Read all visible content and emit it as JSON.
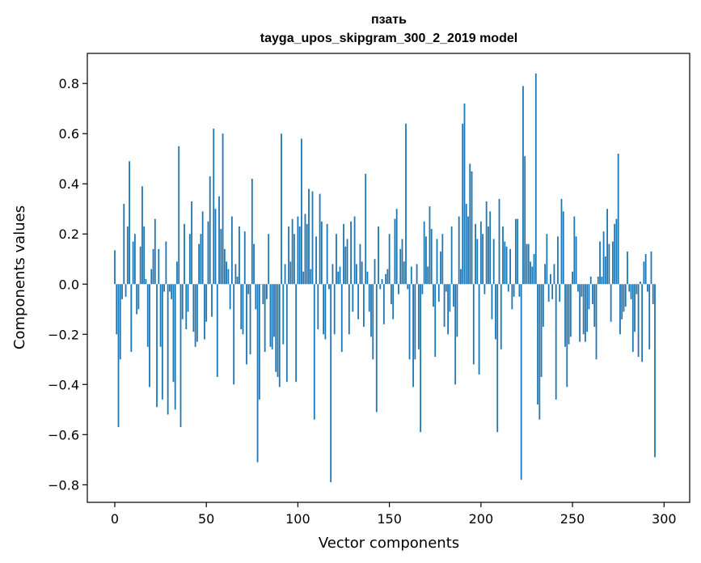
{
  "chart_data": {
    "type": "bar",
    "title": "пзать",
    "subtitle": "tayga_upos_skipgram_300_2_2019 model",
    "xlabel": "Vector components",
    "ylabel": "Components values",
    "xlim": [
      -15,
      314
    ],
    "ylim": [
      -0.87,
      0.92
    ],
    "x_ticks": [
      0,
      50,
      100,
      150,
      200,
      250,
      300
    ],
    "x_tick_labels": [
      "0",
      "50",
      "100",
      "150",
      "200",
      "250",
      "300"
    ],
    "y_ticks": [
      -0.8,
      -0.6,
      -0.4,
      -0.2,
      0.0,
      0.2,
      0.4,
      0.6,
      0.8
    ],
    "y_tick_labels": [
      "−0.8",
      "−0.6",
      "−0.4",
      "−0.2",
      "0.0",
      "0.2",
      "0.4",
      "0.6",
      "0.8"
    ],
    "bar_color": "#1f77b4",
    "series": [
      {
        "name": "components",
        "values": [
          0.135,
          -0.2,
          -0.57,
          -0.3,
          -0.06,
          0.32,
          -0.05,
          0.23,
          0.49,
          -0.27,
          0.17,
          0.2,
          -0.12,
          -0.1,
          0.15,
          0.39,
          0.23,
          0.02,
          -0.25,
          -0.41,
          0.06,
          0.14,
          0.26,
          -0.49,
          0.14,
          -0.25,
          -0.46,
          -0.03,
          0.17,
          -0.52,
          -0.03,
          -0.06,
          -0.39,
          -0.5,
          0.09,
          0.55,
          -0.57,
          -0.14,
          0.24,
          -0.18,
          -0.11,
          0.2,
          0.33,
          -0.19,
          -0.25,
          -0.23,
          0.16,
          0.2,
          0.29,
          -0.22,
          -0.15,
          0.25,
          0.43,
          -0.13,
          0.62,
          0.3,
          -0.37,
          0.35,
          0.22,
          0.6,
          0.14,
          0.09,
          0.06,
          -0.1,
          0.27,
          -0.4,
          0.08,
          0.03,
          0.23,
          -0.18,
          -0.2,
          0.21,
          -0.32,
          -0.04,
          -0.28,
          0.42,
          0.16,
          -0.1,
          -0.71,
          -0.46,
          0.0,
          -0.08,
          -0.27,
          -0.06,
          0.2,
          -0.25,
          -0.26,
          -0.21,
          -0.35,
          -0.37,
          -0.41,
          0.6,
          -0.24,
          0.08,
          -0.39,
          0.23,
          0.09,
          0.26,
          0.2,
          -0.39,
          0.27,
          0.23,
          0.58,
          0.05,
          0.28,
          0.24,
          0.38,
          0.06,
          0.37,
          -0.54,
          0.19,
          -0.18,
          0.36,
          0.25,
          -0.2,
          -0.22,
          0.24,
          -0.02,
          -0.79,
          0.08,
          -0.2,
          0.2,
          0.05,
          0.07,
          -0.27,
          0.24,
          0.15,
          0.18,
          -0.2,
          0.25,
          -0.11,
          0.27,
          0.08,
          -0.14,
          0.16,
          0.09,
          -0.17,
          0.44,
          0.05,
          -0.11,
          -0.21,
          -0.3,
          0.1,
          -0.51,
          0.23,
          -0.02,
          0.02,
          -0.16,
          0.04,
          0.06,
          0.2,
          -0.08,
          -0.14,
          0.26,
          0.3,
          -0.04,
          0.14,
          0.18,
          0.09,
          0.64,
          -0.02,
          -0.3,
          0.07,
          -0.41,
          -0.3,
          0.08,
          -0.26,
          -0.59,
          -0.04,
          0.25,
          0.19,
          0.07,
          0.31,
          0.22,
          -0.09,
          -0.29,
          0.18,
          -0.07,
          0.13,
          0.2,
          -0.17,
          -0.03,
          -0.2,
          -0.11,
          0.23,
          -0.09,
          -0.4,
          -0.21,
          0.27,
          0.06,
          0.64,
          0.72,
          0.32,
          0.27,
          0.48,
          0.45,
          -0.32,
          0.24,
          0.18,
          -0.36,
          0.25,
          0.2,
          -0.04,
          0.33,
          0.23,
          0.29,
          -0.14,
          0.18,
          -0.22,
          -0.59,
          0.34,
          -0.26,
          0.23,
          0.17,
          0.15,
          -0.03,
          0.14,
          -0.1,
          -0.05,
          0.26,
          0.26,
          -0.05,
          -0.78,
          0.79,
          0.51,
          0.16,
          0.16,
          0.09,
          0.07,
          0.12,
          0.84,
          -0.48,
          -0.54,
          -0.37,
          -0.17,
          0.08,
          0.2,
          -0.07,
          0.04,
          -0.06,
          0.08,
          -0.46,
          0.19,
          -0.07,
          0.34,
          0.29,
          -0.25,
          -0.41,
          -0.24,
          -0.21,
          0.05,
          0.27,
          0.19,
          -0.03,
          -0.23,
          -0.05,
          -0.2,
          -0.23,
          -0.19,
          -0.1,
          0.03,
          -0.08,
          -0.17,
          -0.3,
          0.03,
          0.17,
          0.03,
          0.21,
          0.11,
          0.3,
          0.16,
          -0.15,
          0.17,
          0.24,
          0.26,
          0.52,
          -0.2,
          -0.14,
          -0.11,
          -0.09,
          0.13,
          -0.03,
          -0.06,
          -0.27,
          -0.19,
          -0.04,
          -0.29,
          0.01,
          -0.31,
          0.09,
          0.12,
          -0.03,
          -0.26,
          0.13,
          -0.08,
          -0.69
        ]
      }
    ]
  }
}
